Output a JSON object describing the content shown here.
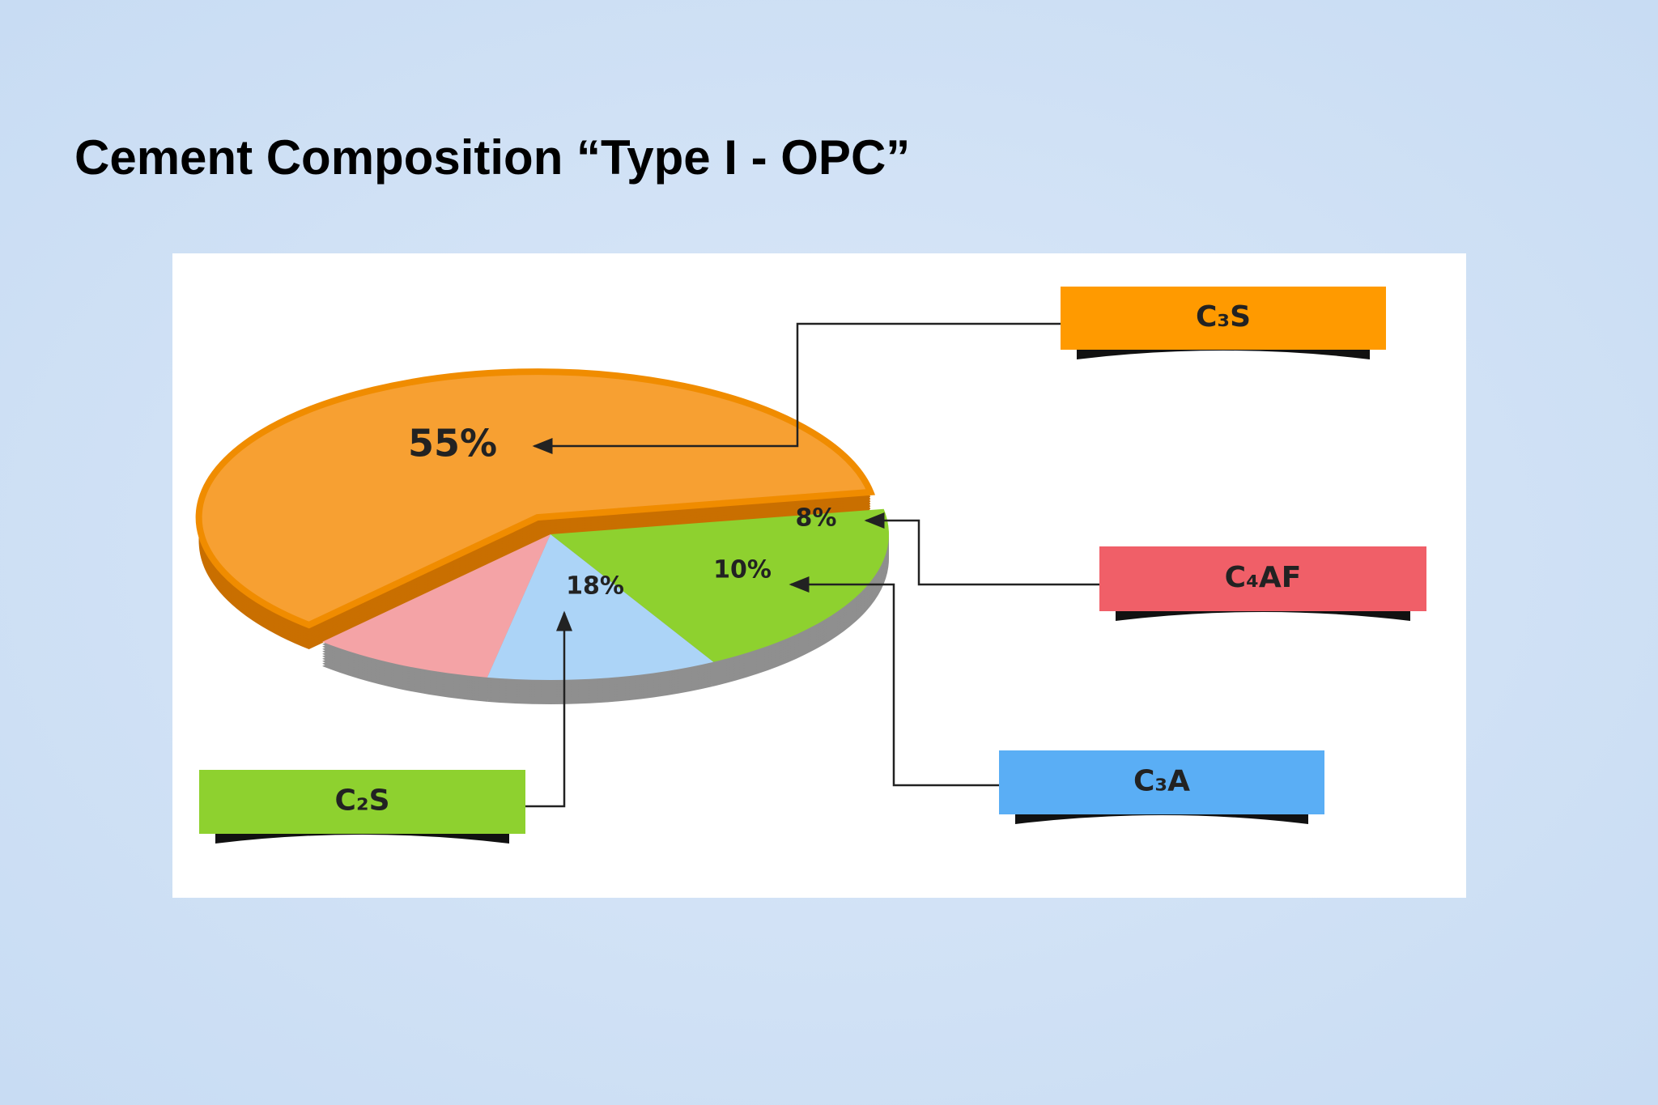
{
  "chart_data": {
    "type": "pie",
    "title": "Cement Composition “Type I - OPC”",
    "categories": [
      "C₃S",
      "C₄AF",
      "C₃A",
      "C₂S"
    ],
    "values": [
      55,
      8,
      10,
      18
    ],
    "value_labels": [
      "55%",
      "8%",
      "10%",
      "18%"
    ],
    "colors": [
      "#f7a032",
      "#f4a3a6",
      "#acd4f7",
      "#8ed12f"
    ],
    "label_colors": [
      "#ff9a00",
      "#f05f68",
      "#5aaef5",
      "#8ed12f"
    ]
  }
}
